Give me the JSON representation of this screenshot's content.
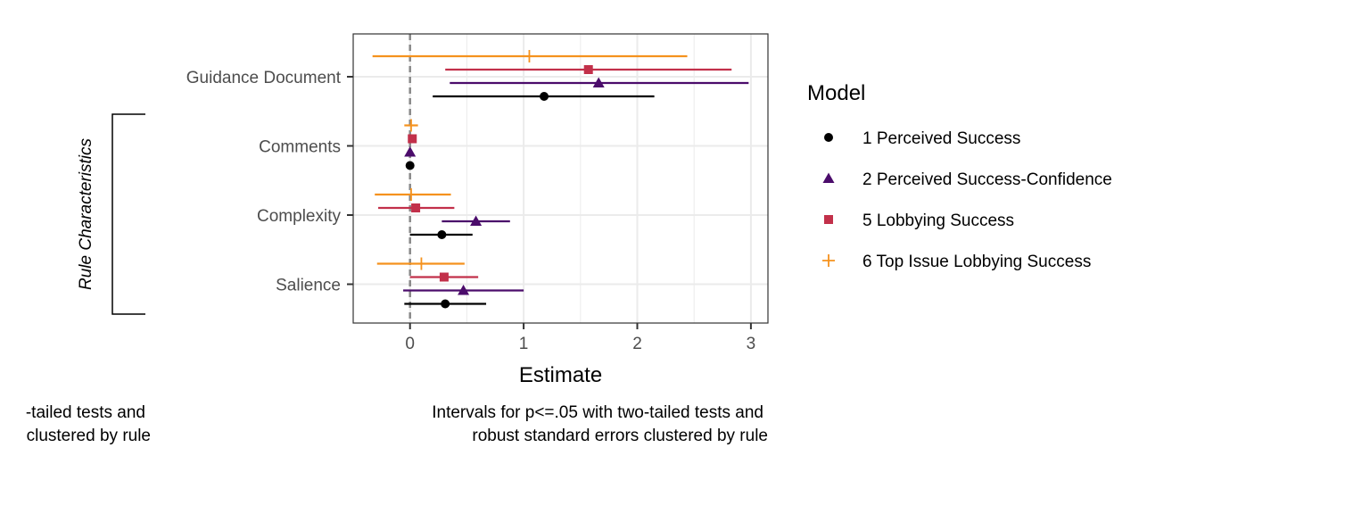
{
  "chart_data": {
    "type": "scatter",
    "subtype": "coefficient-plot",
    "title": "",
    "xlabel": "Estimate",
    "ylabel": "",
    "xlim": [
      -0.5,
      3.15
    ],
    "xticks": [
      0,
      1,
      2,
      3
    ],
    "reference_line": 0,
    "grid": true,
    "legend_position": "right",
    "legend_title": "Model",
    "categories": [
      "Guidance Document",
      "Comments",
      "Complexity",
      "Salience"
    ],
    "bracket": {
      "label": "Rule Characteristics",
      "covers": [
        "Comments",
        "Complexity",
        "Salience"
      ]
    },
    "caption_lines": [
      "Intervals for p<=.05 with two-tailed tests and",
      "robust standard errors clustered by rule"
    ],
    "left_caption_lines": [
      "-tailed tests and",
      "clustered by rule"
    ],
    "series": [
      {
        "name": "1 Perceived Success",
        "color": "#000000",
        "shape": "circle",
        "points": [
          {
            "term": "Guidance Document",
            "estimate": 1.18,
            "low": 0.2,
            "high": 2.15
          },
          {
            "term": "Comments",
            "estimate": 0.0,
            "low": 0.0,
            "high": 0.0
          },
          {
            "term": "Complexity",
            "estimate": 0.28,
            "low": 0.0,
            "high": 0.55
          },
          {
            "term": "Salience",
            "estimate": 0.31,
            "low": -0.05,
            "high": 0.67
          }
        ]
      },
      {
        "name": "2 Perceived Success-Confidence",
        "color": "#4b0c6b",
        "shape": "triangle",
        "points": [
          {
            "term": "Guidance Document",
            "estimate": 1.66,
            "low": 0.35,
            "high": 2.98
          },
          {
            "term": "Comments",
            "estimate": 0.0,
            "low": 0.0,
            "high": 0.0
          },
          {
            "term": "Complexity",
            "estimate": 0.58,
            "low": 0.28,
            "high": 0.88
          },
          {
            "term": "Salience",
            "estimate": 0.47,
            "low": -0.06,
            "high": 1.0
          }
        ]
      },
      {
        "name": "5 Lobbying Success",
        "color": "#c2304a",
        "shape": "square",
        "points": [
          {
            "term": "Guidance Document",
            "estimate": 1.57,
            "low": 0.31,
            "high": 2.83
          },
          {
            "term": "Comments",
            "estimate": 0.02,
            "low": 0.02,
            "high": 0.02
          },
          {
            "term": "Complexity",
            "estimate": 0.05,
            "low": -0.28,
            "high": 0.39
          },
          {
            "term": "Salience",
            "estimate": 0.3,
            "low": 0.0,
            "high": 0.6
          }
        ]
      },
      {
        "name": "6 Top Issue Lobbying Success",
        "color": "#f5921e",
        "shape": "plus",
        "points": [
          {
            "term": "Guidance Document",
            "estimate": 1.05,
            "low": -0.33,
            "high": 2.44
          },
          {
            "term": "Comments",
            "estimate": 0.01,
            "low": -0.05,
            "high": 0.07
          },
          {
            "term": "Complexity",
            "estimate": 0.01,
            "low": -0.31,
            "high": 0.36
          },
          {
            "term": "Salience",
            "estimate": 0.1,
            "low": -0.29,
            "high": 0.48
          }
        ]
      }
    ]
  }
}
